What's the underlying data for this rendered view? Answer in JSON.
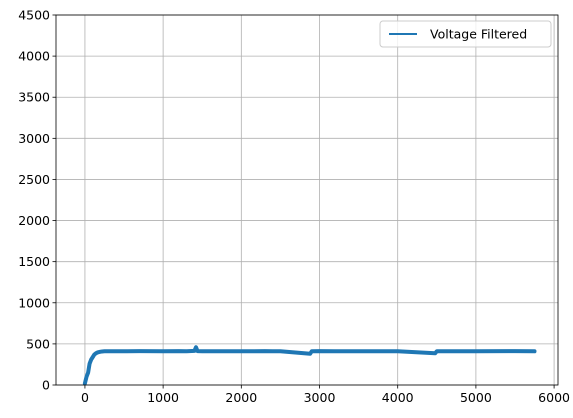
{
  "chart_data": {
    "type": "line",
    "title": "",
    "xlabel": "",
    "ylabel": "",
    "xlim": [
      -370,
      6050
    ],
    "ylim": [
      0,
      4500
    ],
    "x_ticks": [
      0,
      1000,
      2000,
      3000,
      4000,
      5000,
      6000
    ],
    "x_tick_labels": [
      "0",
      "1000",
      "2000",
      "3000",
      "4000",
      "5000",
      "6000"
    ],
    "y_ticks": [
      0,
      500,
      1000,
      1500,
      2000,
      2500,
      3000,
      3500,
      4000,
      4500
    ],
    "y_tick_labels": [
      "0",
      "500",
      "1000",
      "1500",
      "2000",
      "2500",
      "3000",
      "3500",
      "4000",
      "4500"
    ],
    "grid": true,
    "legend_position": "top-right",
    "series": [
      {
        "name": "Voltage Filtered",
        "color": "#1f77b4",
        "x": [
          0,
          10,
          20,
          40,
          60,
          80,
          100,
          120,
          140,
          160,
          180,
          200,
          220,
          250,
          300,
          400,
          500,
          700,
          1000,
          1200,
          1300,
          1400,
          1420,
          1440,
          1500,
          1600,
          2000,
          2100,
          2300,
          2400,
          2500,
          2880,
          2900,
          3000,
          3200,
          3500,
          4000,
          4480,
          4500,
          5000,
          5500,
          5750
        ],
        "y": [
          20,
          60,
          100,
          150,
          260,
          310,
          340,
          370,
          385,
          395,
          400,
          405,
          408,
          410,
          410,
          410,
          410,
          412,
          410,
          412,
          410,
          415,
          460,
          412,
          410,
          410,
          410,
          410,
          412,
          410,
          410,
          380,
          410,
          412,
          410,
          410,
          410,
          385,
          410,
          410,
          412,
          410
        ]
      }
    ]
  }
}
